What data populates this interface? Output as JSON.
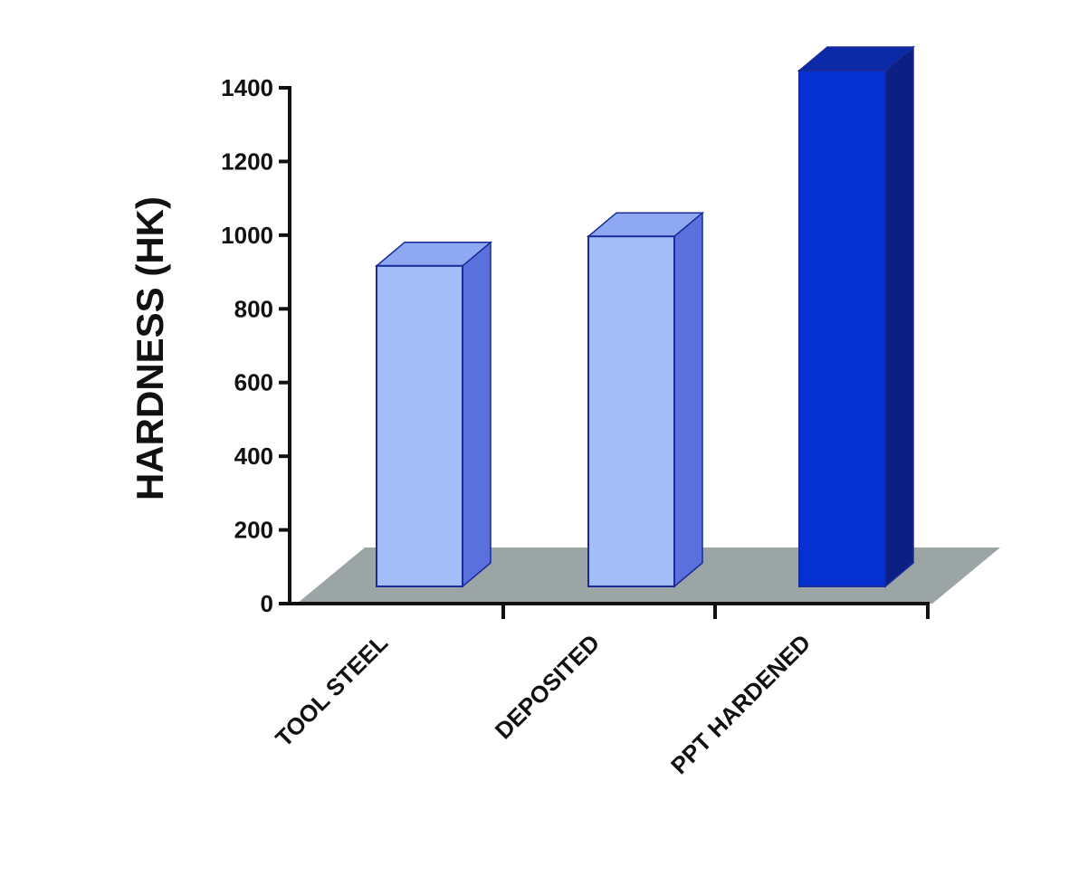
{
  "chart_data": {
    "type": "bar",
    "style": "3d",
    "categories": [
      "TOOL STEEL",
      "DEPOSITED",
      "PPT HARDENED"
    ],
    "values": [
      870,
      950,
      1400
    ],
    "xlabel": "",
    "ylabel": "HARDNESS (HK)",
    "ylim": [
      0,
      1400
    ],
    "yticks": [
      0,
      200,
      400,
      600,
      800,
      1000,
      1200,
      1400
    ],
    "grid": false,
    "bar_colors": [
      "#a3bdf8",
      "#a3bdf8",
      "#0530d2"
    ],
    "floor_color": "#9ca5a5"
  }
}
